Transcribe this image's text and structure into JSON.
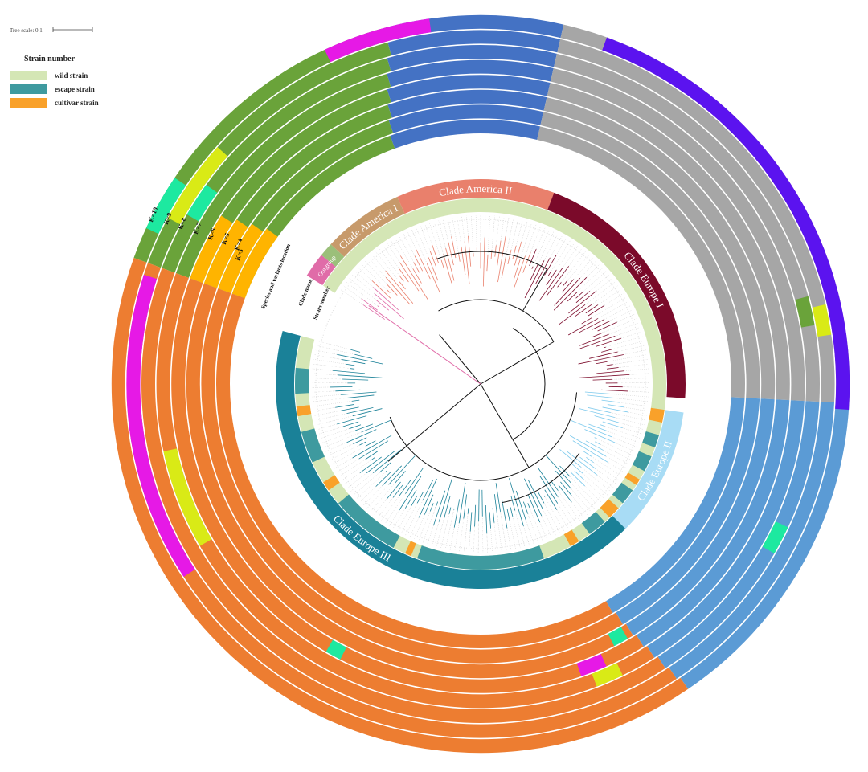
{
  "scale": {
    "label": "Tree scale: 0.1"
  },
  "legend": {
    "title": "Strain number",
    "items": [
      "wild strain",
      "escape strain",
      "cultivar strain"
    ]
  },
  "clades": [
    "Outgroup",
    "Clade America I",
    "Clade America II",
    "Clade Europe I",
    "Clade Europe II",
    "Clade Europe III"
  ],
  "k_labels": [
    "K=10",
    "K=9",
    "K=8",
    "K=7",
    "K=6",
    "K=5",
    "K=4",
    "K=3"
  ],
  "ring_labels": [
    "Species and variants location",
    "Strain number",
    "Clade name"
  ]
}
